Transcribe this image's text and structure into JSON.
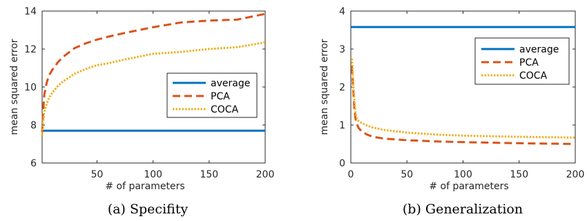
{
  "colors": {
    "average": "#0072BD",
    "PCA": "#D95319",
    "COCA": "#EDB120",
    "axis": "#262626"
  },
  "chart_data": [
    {
      "type": "line",
      "caption": "(a) Specifity",
      "xlabel": "# of parameters",
      "ylabel": "mean squared error",
      "xlim": [
        1,
        200
      ],
      "ylim": [
        6,
        14
      ],
      "xticks": [
        50,
        100,
        150,
        200
      ],
      "yticks": [
        6,
        8,
        10,
        12,
        14
      ],
      "grid": false,
      "legend_position": "right",
      "series": [
        {
          "name": "average",
          "style": "solid",
          "x": [
            1,
            200
          ],
          "y": [
            7.7,
            7.7
          ]
        },
        {
          "name": "PCA",
          "style": "dashed",
          "x": [
            1,
            2,
            3,
            5,
            7,
            10,
            15,
            20,
            30,
            40,
            50,
            60,
            75,
            100,
            125,
            150,
            175,
            200
          ],
          "y": [
            7.6,
            8.8,
            9.6,
            10.2,
            10.6,
            10.9,
            11.3,
            11.6,
            12.05,
            12.3,
            12.5,
            12.65,
            12.85,
            13.15,
            13.4,
            13.5,
            13.55,
            13.85
          ]
        },
        {
          "name": "COCA",
          "style": "dotted",
          "x": [
            1,
            2,
            3,
            5,
            7,
            10,
            15,
            20,
            30,
            40,
            50,
            60,
            75,
            100,
            125,
            150,
            175,
            200
          ],
          "y": [
            7.4,
            8.2,
            8.7,
            9.1,
            9.4,
            9.7,
            10.05,
            10.3,
            10.7,
            10.95,
            11.15,
            11.25,
            11.45,
            11.75,
            11.85,
            12.0,
            12.1,
            12.35
          ]
        }
      ]
    },
    {
      "type": "line",
      "caption": "(b) Generalization",
      "xlabel": "# of parameters",
      "ylabel": "mean squared error",
      "xlim": [
        0,
        200
      ],
      "ylim": [
        0,
        4
      ],
      "xticks": [
        0,
        50,
        100,
        150,
        200
      ],
      "yticks": [
        0,
        1,
        2,
        3,
        4
      ],
      "grid": false,
      "legend_position": "top-right",
      "series": [
        {
          "name": "average",
          "style": "solid",
          "x": [
            0,
            200
          ],
          "y": [
            3.58,
            3.58
          ]
        },
        {
          "name": "PCA",
          "style": "dashed",
          "x": [
            1,
            2,
            3,
            4,
            5,
            7,
            10,
            15,
            20,
            30,
            50,
            75,
            100,
            150,
            200
          ],
          "y": [
            2.55,
            2.0,
            1.5,
            1.2,
            1.05,
            0.92,
            0.82,
            0.74,
            0.69,
            0.64,
            0.6,
            0.57,
            0.55,
            0.52,
            0.5
          ]
        },
        {
          "name": "COCA",
          "style": "dotted",
          "x": [
            1,
            2,
            3,
            4,
            5,
            7,
            10,
            15,
            20,
            30,
            50,
            75,
            100,
            150,
            200
          ],
          "y": [
            2.75,
            2.2,
            1.7,
            1.35,
            1.2,
            1.1,
            1.05,
            0.98,
            0.93,
            0.87,
            0.8,
            0.75,
            0.72,
            0.69,
            0.67
          ]
        }
      ]
    }
  ]
}
